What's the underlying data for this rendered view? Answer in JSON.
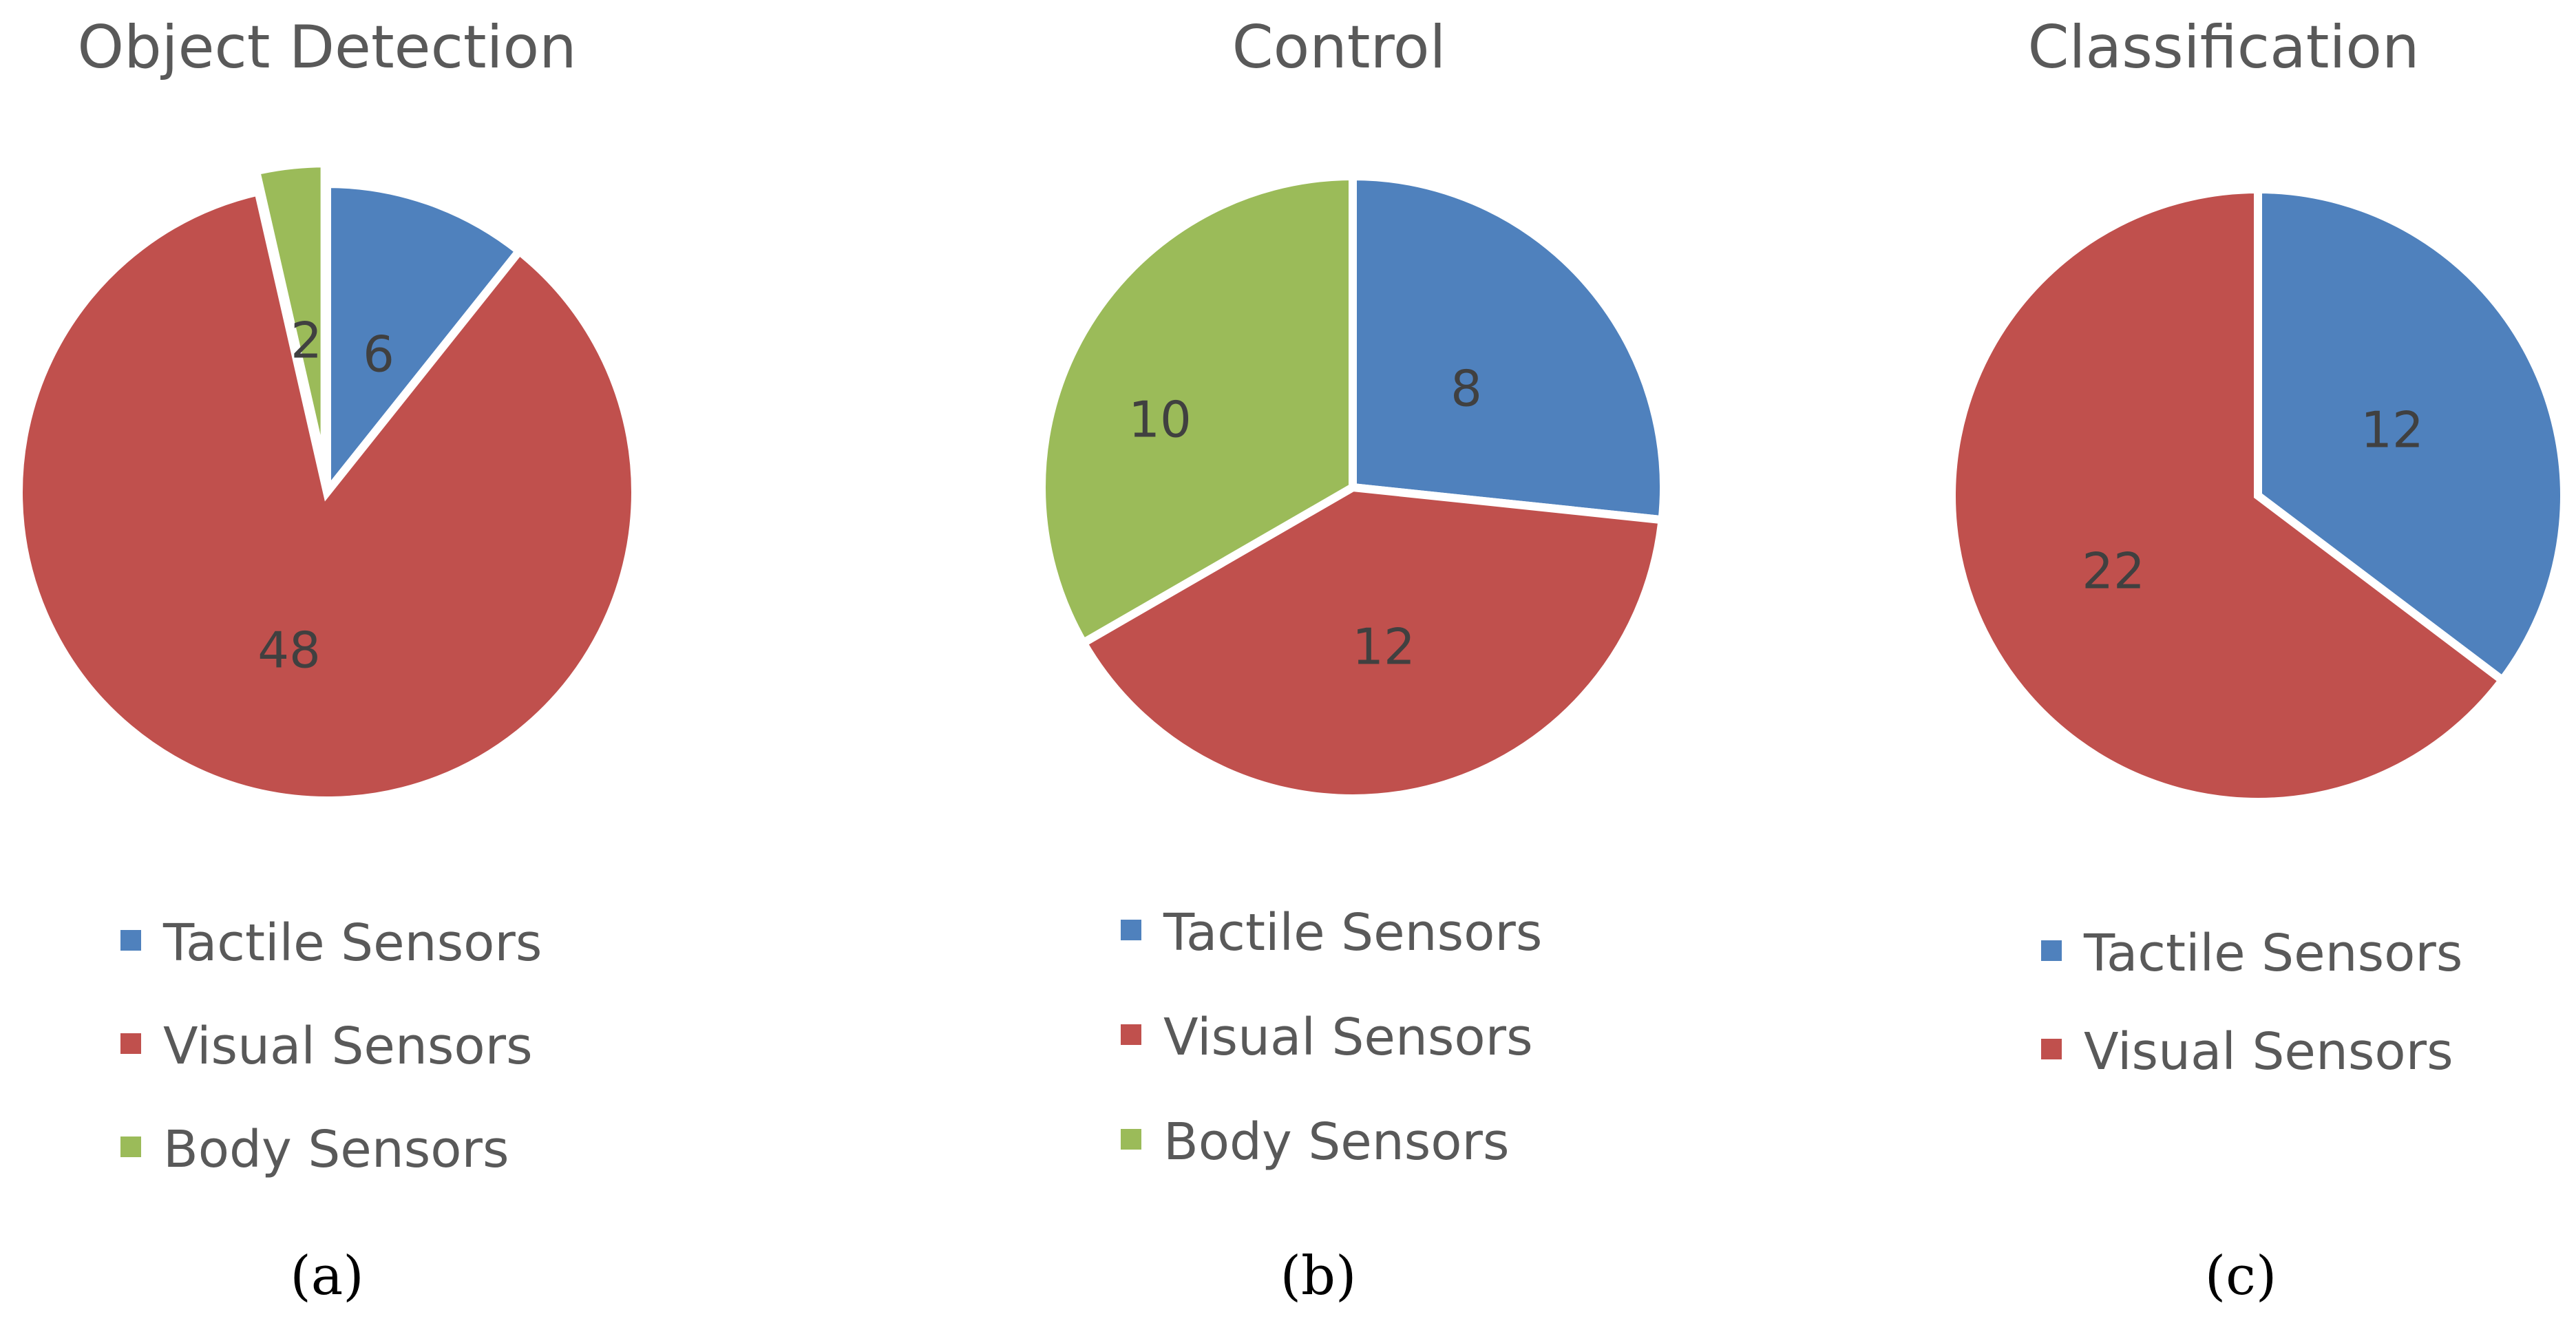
{
  "colors": {
    "tactile": "#4F81BD",
    "visual": "#C0504D",
    "body": "#9BBB59",
    "separator": "#FFFFFF"
  },
  "chart_data": [
    {
      "type": "pie",
      "title": "Object Detection",
      "caption": "(a)",
      "slices": [
        {
          "label": "Tactile Sensors",
          "value": 6,
          "color": "#4F81BD",
          "display": "6"
        },
        {
          "label": "Visual Sensors",
          "value": 48,
          "color": "#C0504D",
          "display": "48"
        },
        {
          "label": "Body Sensors",
          "value": 2,
          "color": "#9BBB59",
          "display": "2"
        }
      ],
      "legend": [
        "Tactile Sensors",
        "Visual Sensors",
        "Body Sensors"
      ],
      "legend_position": "bottom",
      "start_angle": "12 o'clock, clockwise",
      "exploded_slice": "Body Sensors"
    },
    {
      "type": "pie",
      "title": "Control",
      "caption": "(b)",
      "slices": [
        {
          "label": "Tactile Sensors",
          "value": 8,
          "color": "#4F81BD",
          "display": "8"
        },
        {
          "label": "Visual Sensors",
          "value": 12,
          "color": "#C0504D",
          "display": "12"
        },
        {
          "label": "Body Sensors",
          "value": 10,
          "color": "#9BBB59",
          "display": "10"
        }
      ],
      "legend": [
        "Tactile Sensors",
        "Visual Sensors",
        "Body Sensors"
      ],
      "legend_position": "bottom",
      "start_angle": "12 o'clock, clockwise"
    },
    {
      "type": "pie",
      "title": "Classification",
      "caption": "(c)",
      "slices": [
        {
          "label": "Tactile Sensors",
          "value": 12,
          "color": "#4F81BD",
          "display": "12"
        },
        {
          "label": "Visual Sensors",
          "value": 22,
          "color": "#C0504D",
          "display": "22"
        }
      ],
      "legend": [
        "Tactile Sensors",
        "Visual Sensors"
      ],
      "legend_position": "bottom",
      "start_angle": "12 o'clock, clockwise"
    }
  ]
}
